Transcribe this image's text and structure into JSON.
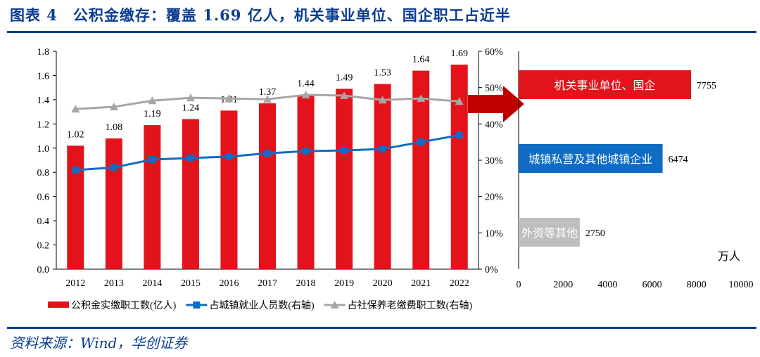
{
  "title": "图表 4　公积金缴存：覆盖 1.69 亿人，机关事业单位、国企职工占近半",
  "source": "资料来源：Wind，华创证券",
  "colors": {
    "bar": "#e3131b",
    "blue": "#0f6cc4",
    "gray": "#a6a6a6",
    "arrow": "#c00000",
    "title": "#0b3d91"
  },
  "chart_data": [
    {
      "type": "bar+line",
      "categories": [
        "2012",
        "2013",
        "2014",
        "2015",
        "2016",
        "2017",
        "2018",
        "2019",
        "2020",
        "2021",
        "2022"
      ],
      "left_ylim": [
        0,
        1.8
      ],
      "left_ticks": [
        "0.0",
        "0.2",
        "0.4",
        "0.6",
        "0.8",
        "1.0",
        "1.2",
        "1.4",
        "1.6",
        "1.8"
      ],
      "right_ylim": [
        0,
        60
      ],
      "right_ticks": [
        "0%",
        "10%",
        "20%",
        "30%",
        "40%",
        "50%",
        "60%"
      ],
      "series": [
        {
          "name": "公积金实缴职工数(亿人)",
          "type": "bar",
          "axis": "left",
          "values": [
            1.02,
            1.08,
            1.19,
            1.24,
            1.31,
            1.37,
            1.44,
            1.49,
            1.53,
            1.64,
            1.69
          ],
          "labels": [
            "1.02",
            "1.08",
            "1.19",
            "1.24",
            "1.31",
            "1.37",
            "1.44",
            "1.49",
            "1.53",
            "1.64",
            "1.69"
          ]
        },
        {
          "name": "占城镇就业人员数(右轴)",
          "type": "line",
          "axis": "right",
          "values": [
            27.3,
            28.0,
            30.2,
            30.6,
            31.0,
            31.9,
            32.5,
            32.7,
            33.1,
            35.0,
            36.9
          ]
        },
        {
          "name": "占社保养老缴费职工数(右轴)",
          "type": "line",
          "axis": "right",
          "values": [
            44.1,
            44.7,
            46.4,
            47.2,
            47.0,
            46.8,
            48.0,
            47.8,
            46.6,
            47.0,
            46.2
          ]
        }
      ],
      "legend_position": "bottom"
    },
    {
      "type": "bar-horizontal",
      "unit": "万人",
      "xlim": [
        0,
        10000
      ],
      "x_ticks": [
        "0",
        "2000",
        "4000",
        "6000",
        "8000",
        "10000"
      ],
      "categories": [
        "机关事业单位、国企",
        "城镇私营及其他城镇企业",
        "外资等其他"
      ],
      "values": [
        7755,
        6474,
        2750
      ],
      "labels": [
        "7755",
        "6474",
        "2750"
      ]
    }
  ]
}
